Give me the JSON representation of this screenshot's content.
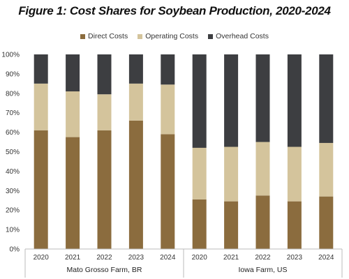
{
  "chart_data": {
    "type": "bar",
    "stacked": true,
    "title": "Figure 1: Cost Shares for Soybean Production, 2020-2024",
    "ylim": [
      0,
      100
    ],
    "y_ticks": [
      "0%",
      "10%",
      "20%",
      "30%",
      "40%",
      "50%",
      "60%",
      "70%",
      "80%",
      "90%",
      "100%"
    ],
    "legend_position": "top-center",
    "groups": [
      {
        "name": "Mato Grosso Farm, BR",
        "categories": [
          "2020",
          "2021",
          "2022",
          "2023",
          "2024"
        ]
      },
      {
        "name": "Iowa Farm, US",
        "categories": [
          "2020",
          "2021",
          "2022",
          "2023",
          "2024"
        ]
      }
    ],
    "series": [
      {
        "name": "Direct Costs",
        "color": "#8b6c3e",
        "values": [
          61,
          57.5,
          61,
          66,
          59,
          25.5,
          24.5,
          27.5,
          24.5,
          27
        ]
      },
      {
        "name": "Operating Costs",
        "color": "#d4c49c",
        "values": [
          24,
          23.5,
          18.5,
          19,
          25.5,
          26.5,
          28,
          27.5,
          28,
          27.5
        ]
      },
      {
        "name": "Overhead Costs",
        "color": "#3d3e41",
        "values": [
          15,
          19,
          20.5,
          15,
          15.5,
          48,
          47.5,
          45,
          47.5,
          45.5
        ]
      }
    ]
  }
}
